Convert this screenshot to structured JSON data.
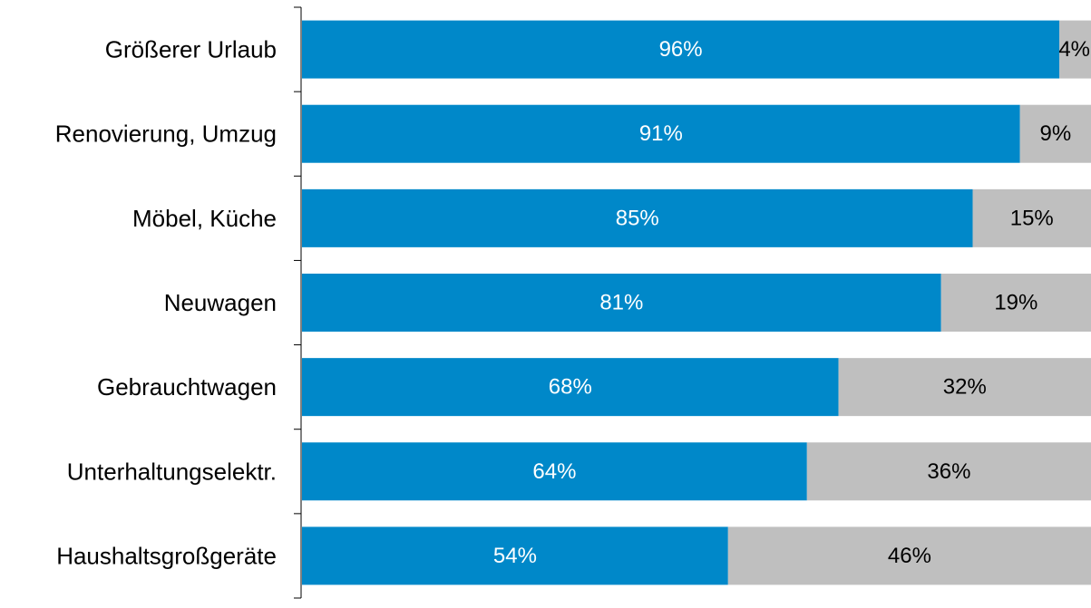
{
  "chart_data": {
    "type": "bar",
    "orientation": "horizontal",
    "stacked": true,
    "percent_stacked": true,
    "title": "",
    "xlabel": "",
    "ylabel": "",
    "xlim": [
      0,
      100
    ],
    "grid": false,
    "legend": "none",
    "categories": [
      "Größerer Urlaub",
      "Renovierung, Umzug",
      "Möbel, Küche",
      "Neuwagen",
      "Gebrauchtwagen",
      "Unterhaltungselektr.",
      "Haushaltsgroßgeräte"
    ],
    "series": [
      {
        "color": "#0088C9",
        "label_color": "#ffffff",
        "values": [
          96,
          91,
          85,
          81,
          68,
          64,
          54
        ],
        "labels": [
          "96%",
          "91%",
          "85%",
          "81%",
          "68%",
          "64%",
          "54%"
        ]
      },
      {
        "color": "#BFBFBF",
        "label_color": "#000000",
        "values": [
          4,
          9,
          15,
          19,
          32,
          36,
          46
        ],
        "labels": [
          "4%",
          "9%",
          "15%",
          "19%",
          "32%",
          "36%",
          "46%"
        ]
      }
    ]
  }
}
